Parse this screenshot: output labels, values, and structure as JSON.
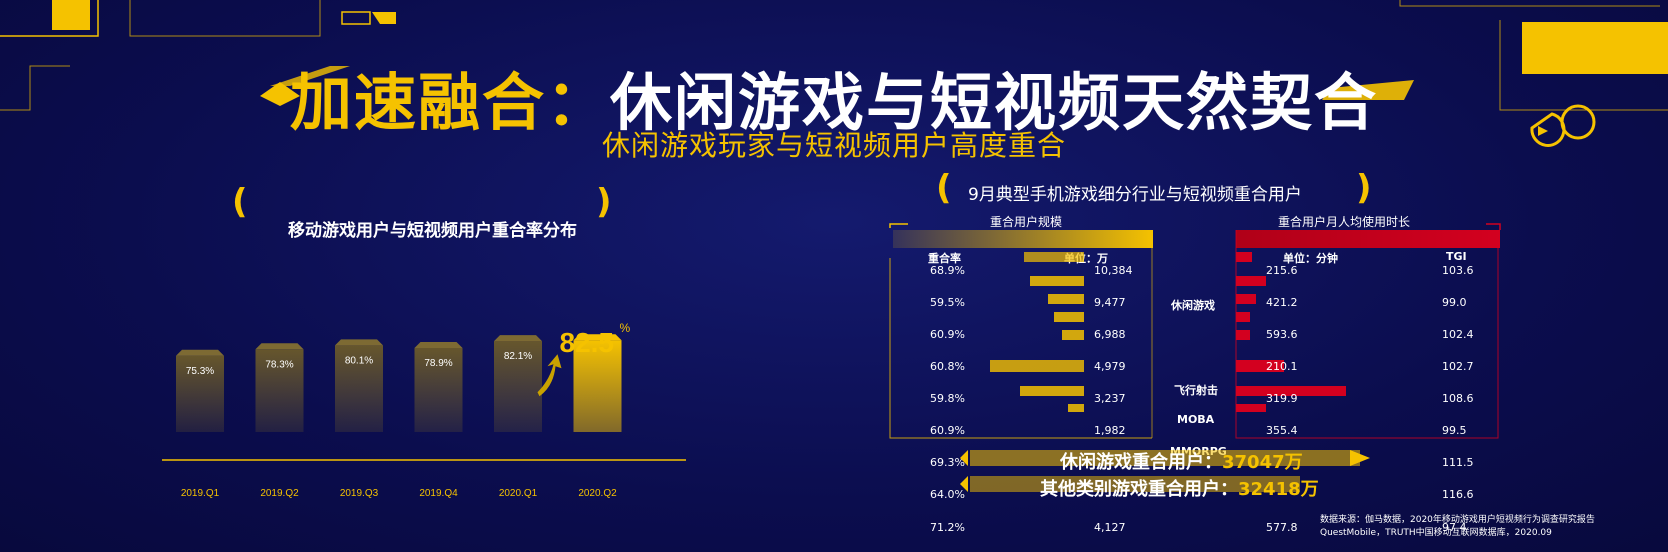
{
  "title": {
    "part1": "加速融合：",
    "part2": "休闲游戏与短视频天然契合"
  },
  "subtitle": "休闲游戏玩家与短视频用户高度重合",
  "left_chart_title": "移动游戏用户与短视频用户重合率分布",
  "right_chart_title": "9月典型手机游戏细分行业与短视频重合用户",
  "right_table": {
    "header_scale": "重合用户规模",
    "header_duration": "重合用户月人均使用时长",
    "col_rate": "重合率",
    "col_unit_wan": "单位：万",
    "col_unit_min": "单位：分钟",
    "col_tgi": "TGI",
    "categories": [
      "休闲游戏",
      "飞行射击",
      "MOBA",
      "MMORPG"
    ],
    "rows": [
      {
        "rate": "68.9%",
        "users": "10,384",
        "minutes": "215.6",
        "tgi": "103.6"
      },
      {
        "rate": "59.5%",
        "users": "9,477",
        "minutes": "421.2",
        "tgi": "99.0"
      },
      {
        "rate": "60.9%",
        "users": "6,988",
        "minutes": "593.6",
        "tgi": "102.4"
      },
      {
        "rate": "60.8%",
        "users": "4,979",
        "minutes": "210.1",
        "tgi": "102.7"
      },
      {
        "rate": "59.8%",
        "users": "3,237",
        "minutes": "319.9",
        "tgi": "108.6"
      },
      {
        "rate": "60.9%",
        "users": "1,982",
        "minutes": "355.4",
        "tgi": "99.5"
      },
      {
        "rate": "69.3%",
        "users": "",
        "minutes": "",
        "tgi": "111.5"
      },
      {
        "rate": "64.0%",
        "users": "",
        "minutes": "",
        "tgi": "116.6"
      },
      {
        "rate": "71.2%",
        "users": "4,127",
        "minutes": "577.8",
        "tgi": "97.4"
      }
    ]
  },
  "badges": {
    "casual_label": "休闲游戏重合用户：",
    "casual_value": "37047万",
    "other_label": "其他类别游戏重合用户：",
    "other_value": "32418万"
  },
  "source": {
    "line1": "数据来源：伽马数据，2020年移动游戏用户短视频行为调查研究报告",
    "line2": "QuestMobile，TRUTH中国移动互联网数据库，2020.09"
  },
  "colors": {
    "accent": "#f5c200",
    "background": "#0d0f55",
    "red": "#d3001f"
  },
  "chart_data": {
    "type": "bar",
    "title": "移动游戏用户与短视频用户重合率分布",
    "categories": [
      "2019.Q1",
      "2019.Q2",
      "2019.Q3",
      "2019.Q4",
      "2020.Q1",
      "2020.Q2"
    ],
    "values": [
      75.3,
      78.3,
      80.1,
      78.9,
      82.1,
      82.5
    ],
    "labels": [
      "75.3%",
      "78.3%",
      "80.1%",
      "78.9%",
      "82.1%",
      "82.5"
    ],
    "highlight_label_unit": "%"
  }
}
